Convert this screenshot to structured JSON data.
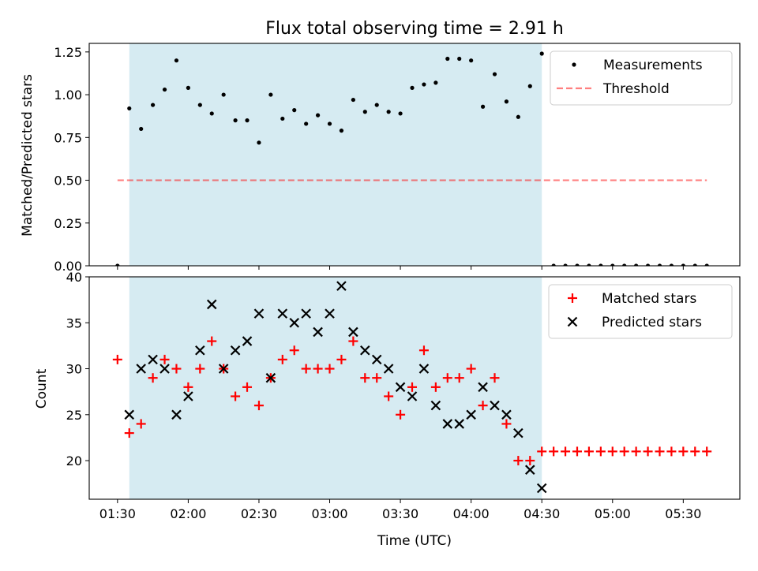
{
  "chart_data": {
    "title": "Flux total observing time = 2.91 h",
    "xlabel": "Time (UTC)",
    "x_ticks": [
      "01:30",
      "02:00",
      "02:30",
      "03:00",
      "03:30",
      "04:00",
      "04:30",
      "05:00",
      "05:30"
    ],
    "x_tick_minutes": [
      90,
      120,
      150,
      180,
      210,
      240,
      270,
      300,
      330
    ],
    "xlim_minutes": [
      78,
      354
    ],
    "shaded_span_minutes": [
      95,
      270
    ],
    "colors": {
      "span": "#add8e6",
      "measurement": "#000000",
      "threshold": "#ff0000",
      "matched": "#ff0000",
      "predicted": "#000000"
    },
    "top": {
      "type": "scatter",
      "ylabel": "Matched/Predicted stars",
      "ylim": [
        0,
        1.3
      ],
      "y_ticks": [
        "0.00",
        "0.25",
        "0.50",
        "0.75",
        "1.00",
        "1.25"
      ],
      "y_tick_values": [
        0,
        0.25,
        0.5,
        0.75,
        1.0,
        1.25
      ],
      "legend_position": "top-right",
      "series": [
        {
          "name": "Measurements",
          "x": [
            90,
            95,
            100,
            105,
            110,
            115,
            120,
            125,
            130,
            135,
            140,
            145,
            150,
            155,
            160,
            165,
            170,
            175,
            180,
            185,
            190,
            195,
            200,
            205,
            210,
            215,
            220,
            225,
            230,
            235,
            240,
            245,
            250,
            255,
            260,
            265,
            270,
            275,
            280,
            285,
            290,
            295,
            300,
            305,
            310,
            315,
            320,
            325,
            330,
            335,
            340
          ],
          "y": [
            0,
            0.92,
            0.8,
            0.94,
            1.03,
            1.2,
            1.04,
            0.94,
            0.89,
            1.0,
            0.85,
            0.85,
            0.72,
            1.0,
            0.86,
            0.91,
            0.83,
            0.88,
            0.83,
            0.79,
            0.97,
            0.9,
            0.94,
            0.9,
            0.89,
            1.04,
            1.06,
            1.07,
            1.21,
            1.21,
            1.2,
            0.93,
            1.12,
            0.96,
            0.87,
            1.05,
            1.24,
            0,
            0,
            0,
            0,
            0,
            0,
            0,
            0,
            0,
            0,
            0,
            0,
            0,
            0
          ]
        },
        {
          "name": "Threshold",
          "x": [
            90,
            340
          ],
          "y": [
            0.5,
            0.5
          ]
        }
      ]
    },
    "bottom": {
      "type": "scatter",
      "ylabel": "Count",
      "ylim": [
        15.8,
        40
      ],
      "y_ticks": [
        "20",
        "25",
        "30",
        "35",
        "40"
      ],
      "y_tick_values": [
        20,
        25,
        30,
        35,
        40
      ],
      "legend_position": "top-right",
      "series": [
        {
          "name": "Matched stars",
          "x": [
            90,
            95,
            100,
            105,
            110,
            115,
            120,
            125,
            130,
            135,
            140,
            145,
            150,
            155,
            160,
            165,
            170,
            175,
            180,
            185,
            190,
            195,
            200,
            205,
            210,
            215,
            220,
            225,
            230,
            235,
            240,
            245,
            250,
            255,
            260,
            265,
            270,
            275,
            280,
            285,
            290,
            295,
            300,
            305,
            310,
            315,
            320,
            325,
            330,
            335,
            340
          ],
          "y": [
            31,
            23,
            24,
            29,
            31,
            30,
            28,
            30,
            33,
            30,
            27,
            28,
            26,
            29,
            31,
            32,
            30,
            30,
            30,
            31,
            33,
            29,
            29,
            27,
            25,
            28,
            32,
            28,
            29,
            29,
            30,
            26,
            29,
            24,
            20,
            20,
            21,
            21,
            21,
            21,
            21,
            21,
            21,
            21,
            21,
            21,
            21,
            21,
            21,
            21,
            21
          ]
        },
        {
          "name": "Predicted stars",
          "x": [
            95,
            100,
            105,
            110,
            115,
            120,
            125,
            130,
            135,
            140,
            145,
            150,
            155,
            160,
            165,
            170,
            175,
            180,
            185,
            190,
            195,
            200,
            205,
            210,
            215,
            220,
            225,
            230,
            235,
            240,
            245,
            250,
            255,
            260,
            265,
            270
          ],
          "y": [
            25,
            30,
            31,
            30,
            25,
            27,
            32,
            37,
            30,
            32,
            33,
            36,
            29,
            36,
            35,
            36,
            34,
            36,
            39,
            34,
            32,
            31,
            30,
            28,
            27,
            30,
            26,
            24,
            24,
            25,
            28,
            26,
            25,
            23,
            19,
            17
          ]
        }
      ]
    }
  }
}
